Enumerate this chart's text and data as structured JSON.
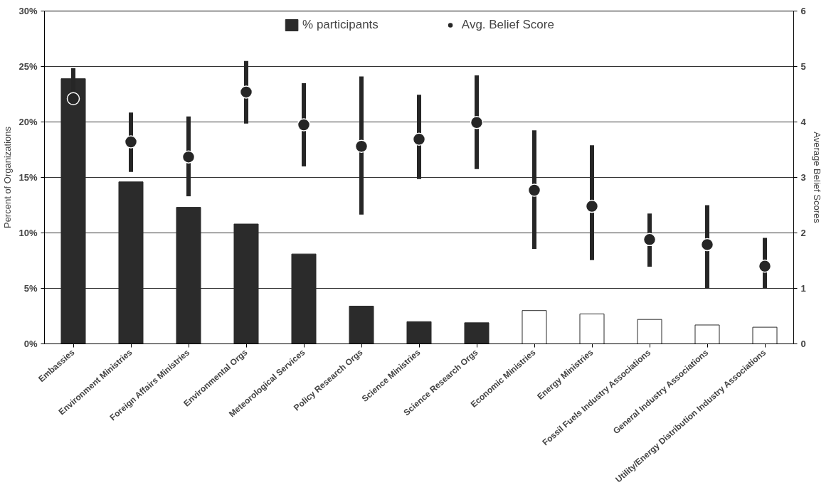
{
  "chart_data": {
    "type": "bar",
    "ylabel": "Percent of Organizations",
    "y2label": "Average Belief Scores",
    "categories": [
      "Embassies",
      "Environment Ministries",
      "Foreign Affairs Ministries",
      "Environmental Orgs",
      "Meteorological Services",
      "Policy Research Orgs",
      "Science Ministries",
      "Science Research Orgs",
      "Economic Ministries",
      "Energy Ministries",
      "Fossil Fuels Industry Associations",
      "General Industry Associations",
      "Utility/Energy Distribution Industry Associations"
    ],
    "series": [
      {
        "name": "% participants",
        "color": "#2b2b2b",
        "colors": [
          "#2b2b2b",
          "#2b2b2b",
          "#2b2b2b",
          "#2b2b2b",
          "#2b2b2b",
          "#2b2b2b",
          "#2b2b2b",
          "#2b2b2b",
          "#ffffff",
          "#ffffff",
          "#ffffff",
          "#ffffff",
          "#ffffff"
        ],
        "values": [
          23.9,
          14.6,
          12.3,
          10.8,
          8.1,
          3.4,
          2.0,
          1.9,
          3.0,
          2.7,
          2.2,
          1.7,
          1.5
        ]
      },
      {
        "name": "Avg. Belief Score",
        "type": "scatter",
        "axis": "y2",
        "color": "#262626",
        "values": [
          4.42,
          3.64,
          3.37,
          4.54,
          3.95,
          3.56,
          3.69,
          3.99,
          2.77,
          2.48,
          1.88,
          1.79,
          1.4
        ],
        "errors": [
          [
            4.42,
            4.97
          ],
          [
            3.1,
            4.17
          ],
          [
            2.66,
            4.1
          ],
          [
            3.97,
            5.1
          ],
          [
            3.2,
            4.7
          ],
          [
            2.33,
            4.82
          ],
          [
            2.97,
            4.49
          ],
          [
            3.15,
            4.84
          ],
          [
            1.71,
            3.85
          ],
          [
            1.51,
            3.58
          ],
          [
            1.39,
            2.35
          ],
          [
            1.0,
            2.5
          ],
          [
            1.0,
            1.91
          ]
        ]
      }
    ],
    "ylim": [
      0,
      30
    ],
    "yticks": [
      {
        "value": 0,
        "label": "0%"
      },
      {
        "value": 5,
        "label": "5%"
      },
      {
        "value": 10,
        "label": "10%"
      },
      {
        "value": 15,
        "label": "15%"
      },
      {
        "value": 20,
        "label": "20%"
      },
      {
        "value": 25,
        "label": "25%"
      },
      {
        "value": 30,
        "label": "30%"
      }
    ],
    "y2lim": [
      0,
      6
    ],
    "y2ticks": [
      0,
      1,
      2,
      3,
      4,
      5,
      6
    ],
    "grid": "y",
    "legend": "top",
    "marker": "circle"
  }
}
